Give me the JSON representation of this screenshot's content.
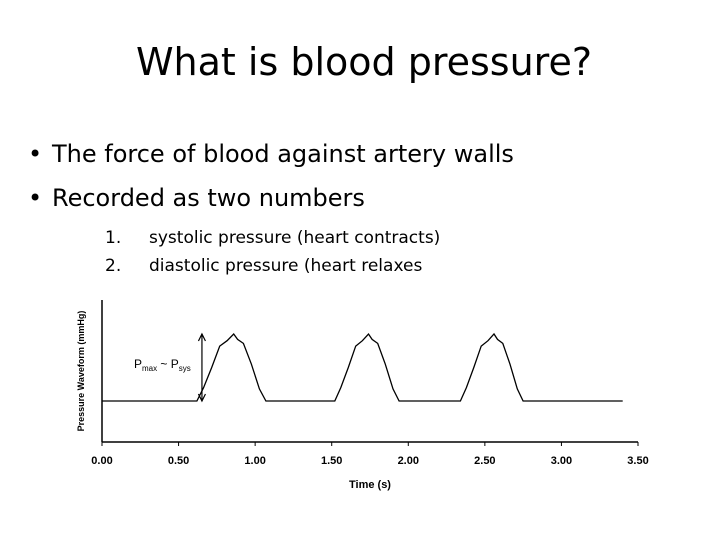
{
  "slide": {
    "title": "What is blood pressure?",
    "bullets": [
      "The force of blood against artery walls",
      "Recorded as two numbers"
    ],
    "subitems": [
      {
        "num": "1.",
        "text": "systolic pressure (heart contracts)"
      },
      {
        "num": "2.",
        "text": "diastolic pressure (heart relaxes"
      }
    ]
  },
  "chart_data": {
    "type": "line",
    "xlabel": "Time (s)",
    "ylabel": "Pressure Waveform (mmHg)",
    "x_ticks": [
      "0.00",
      "0.50",
      "1.00",
      "1.50",
      "2.00",
      "2.50",
      "3.00",
      "3.50"
    ],
    "xlim": [
      0,
      3.5
    ],
    "annotation": {
      "main": "P",
      "sub1": "max",
      "sep": " ~ ",
      "main2": "P",
      "sub2": "sys"
    },
    "waveform": {
      "baseline": 0,
      "peak": 1,
      "pulses": [
        {
          "start": 0.62,
          "peak": 0.86,
          "end": 1.07
        },
        {
          "start": 1.52,
          "peak": 1.74,
          "end": 1.94
        },
        {
          "start": 2.34,
          "peak": 2.56,
          "end": 2.75
        }
      ],
      "end": 3.4
    }
  }
}
